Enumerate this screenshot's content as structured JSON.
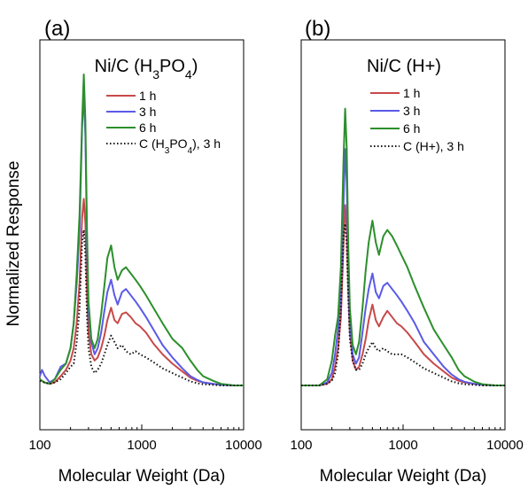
{
  "ylabel": "Normalized Response",
  "chart_data": [
    {
      "type": "line",
      "panel_label": "(a)",
      "title_parts": [
        "Ni/C (H",
        "3",
        "PO",
        "4",
        ")"
      ],
      "xlabel": "Molecular Weight (Da)",
      "ylabel": "Normalized Response",
      "xscale": "log",
      "xlim": [
        100,
        10000
      ],
      "x_ticks": [
        100,
        1000,
        10000
      ],
      "x_tick_labels": [
        "100",
        "1000",
        "10000"
      ],
      "ylim": [
        0,
        1
      ],
      "legend_position": "top-right",
      "series": [
        {
          "name_parts": [
            "1 h"
          ],
          "color": "#c8494a",
          "dash": "solid",
          "x": [
            100,
            110,
            125,
            140,
            160,
            180,
            200,
            215,
            230,
            245,
            260,
            270,
            280,
            290,
            300,
            320,
            345,
            370,
            400,
            430,
            460,
            500,
            540,
            580,
            640,
            700,
            780,
            870,
            960,
            1100,
            1300,
            1600,
            2000,
            2500,
            3000,
            3500,
            4000,
            5000,
            6000,
            8000,
            10000
          ],
          "y": [
            0.02,
            0.01,
            0.005,
            0.01,
            0.03,
            0.05,
            0.08,
            0.12,
            0.2,
            0.33,
            0.54,
            0.6,
            0.52,
            0.3,
            0.17,
            0.1,
            0.08,
            0.09,
            0.12,
            0.16,
            0.21,
            0.25,
            0.21,
            0.2,
            0.23,
            0.235,
            0.22,
            0.2,
            0.19,
            0.17,
            0.135,
            0.1,
            0.07,
            0.045,
            0.025,
            0.015,
            0.01,
            0.005,
            0.002,
            0,
            0
          ]
        },
        {
          "name_parts": [
            "3 h"
          ],
          "color": "#5a5ae8",
          "dash": "solid",
          "x": [
            100,
            105,
            112,
            125,
            140,
            160,
            180,
            200,
            215,
            230,
            245,
            260,
            270,
            280,
            290,
            300,
            320,
            345,
            370,
            400,
            430,
            460,
            500,
            540,
            580,
            640,
            700,
            780,
            870,
            960,
            1100,
            1300,
            1600,
            2000,
            2500,
            3000,
            3500,
            4000,
            5000,
            6000,
            8000,
            10000
          ],
          "y": [
            0.03,
            0.05,
            0.03,
            0.01,
            0.02,
            0.06,
            0.07,
            0.12,
            0.2,
            0.33,
            0.5,
            0.83,
            0.94,
            0.8,
            0.45,
            0.24,
            0.14,
            0.1,
            0.12,
            0.17,
            0.24,
            0.3,
            0.34,
            0.29,
            0.26,
            0.3,
            0.31,
            0.29,
            0.27,
            0.25,
            0.22,
            0.18,
            0.13,
            0.09,
            0.055,
            0.03,
            0.018,
            0.01,
            0.005,
            0.002,
            0,
            0
          ]
        },
        {
          "name_parts": [
            "6 h"
          ],
          "color": "#2c8f2c",
          "dash": "solid",
          "x": [
            100,
            110,
            125,
            140,
            160,
            180,
            200,
            215,
            230,
            245,
            260,
            270,
            280,
            290,
            300,
            320,
            345,
            370,
            400,
            430,
            460,
            500,
            540,
            580,
            640,
            700,
            780,
            870,
            960,
            1100,
            1300,
            1600,
            2000,
            2500,
            3000,
            3500,
            4000,
            5000,
            6000,
            8000,
            10000
          ],
          "y": [
            0.02,
            0.01,
            0.005,
            0.02,
            0.05,
            0.07,
            0.12,
            0.2,
            0.36,
            0.55,
            0.85,
            1.0,
            0.85,
            0.5,
            0.27,
            0.15,
            0.12,
            0.15,
            0.23,
            0.32,
            0.41,
            0.45,
            0.38,
            0.34,
            0.37,
            0.38,
            0.36,
            0.34,
            0.32,
            0.29,
            0.25,
            0.2,
            0.15,
            0.12,
            0.08,
            0.05,
            0.03,
            0.015,
            0.005,
            0,
            0
          ]
        },
        {
          "name_parts": [
            "C (H",
            "3",
            "PO",
            "4",
            "), 3 h"
          ],
          "color": "#111111",
          "dash": "dotted",
          "x": [
            100,
            110,
            125,
            140,
            160,
            180,
            200,
            215,
            230,
            245,
            260,
            270,
            280,
            290,
            300,
            320,
            345,
            370,
            400,
            430,
            460,
            500,
            540,
            580,
            640,
            700,
            780,
            870,
            960,
            1100,
            1300,
            1600,
            2000,
            2500,
            3000,
            3500,
            4000,
            5000,
            6000,
            8000,
            10000
          ],
          "y": [
            0.015,
            0.01,
            0.005,
            0.01,
            0.02,
            0.04,
            0.06,
            0.07,
            0.14,
            0.25,
            0.46,
            0.5,
            0.42,
            0.22,
            0.12,
            0.06,
            0.04,
            0.05,
            0.07,
            0.1,
            0.13,
            0.16,
            0.14,
            0.12,
            0.13,
            0.11,
            0.1,
            0.11,
            0.1,
            0.09,
            0.075,
            0.055,
            0.04,
            0.025,
            0.013,
            0.007,
            0.004,
            0.002,
            0,
            0,
            0
          ]
        }
      ]
    },
    {
      "type": "line",
      "panel_label": "(b)",
      "title_parts": [
        "Ni/C (H+)"
      ],
      "xlabel": "Molecular Weight (Da)",
      "ylabel": "Normalized Response",
      "xscale": "log",
      "xlim": [
        100,
        10000
      ],
      "x_ticks": [
        100,
        1000,
        10000
      ],
      "x_tick_labels": [
        "100",
        "1000",
        "10000"
      ],
      "ylim": [
        0,
        1
      ],
      "legend_position": "top-right",
      "series": [
        {
          "name_parts": [
            "1 h"
          ],
          "color": "#c8494a",
          "dash": "solid",
          "x": [
            100,
            150,
            180,
            200,
            215,
            230,
            245,
            260,
            270,
            280,
            290,
            300,
            320,
            345,
            370,
            400,
            430,
            460,
            500,
            540,
            580,
            640,
            700,
            780,
            870,
            960,
            1100,
            1300,
            1600,
            2000,
            2500,
            3000,
            3500,
            4000,
            5000,
            6000,
            8000,
            10000
          ],
          "y": [
            0,
            0,
            0.005,
            0.02,
            0.06,
            0.12,
            0.22,
            0.45,
            0.58,
            0.5,
            0.3,
            0.17,
            0.08,
            0.05,
            0.06,
            0.1,
            0.15,
            0.21,
            0.26,
            0.21,
            0.19,
            0.22,
            0.24,
            0.22,
            0.2,
            0.19,
            0.17,
            0.14,
            0.1,
            0.07,
            0.045,
            0.025,
            0.015,
            0.01,
            0.005,
            0.002,
            0,
            0
          ]
        },
        {
          "name_parts": [
            "3 h"
          ],
          "color": "#5a5ae8",
          "dash": "solid",
          "x": [
            100,
            150,
            180,
            200,
            215,
            230,
            245,
            260,
            270,
            280,
            290,
            300,
            320,
            345,
            370,
            400,
            430,
            460,
            500,
            540,
            580,
            640,
            700,
            780,
            870,
            960,
            1100,
            1300,
            1600,
            2000,
            2500,
            3000,
            3500,
            4000,
            5000,
            6000,
            8000,
            10000
          ],
          "y": [
            0,
            0,
            0.01,
            0.04,
            0.1,
            0.18,
            0.3,
            0.58,
            0.76,
            0.65,
            0.37,
            0.2,
            0.1,
            0.07,
            0.09,
            0.17,
            0.25,
            0.31,
            0.36,
            0.3,
            0.28,
            0.32,
            0.33,
            0.31,
            0.29,
            0.27,
            0.24,
            0.2,
            0.14,
            0.1,
            0.06,
            0.035,
            0.02,
            0.012,
            0.005,
            0.002,
            0,
            0
          ]
        },
        {
          "name_parts": [
            "6 h"
          ],
          "color": "#2c8f2c",
          "dash": "solid",
          "x": [
            100,
            150,
            180,
            200,
            215,
            230,
            245,
            260,
            270,
            280,
            290,
            300,
            320,
            345,
            370,
            400,
            430,
            460,
            500,
            540,
            580,
            640,
            700,
            780,
            870,
            960,
            1100,
            1300,
            1600,
            2000,
            2500,
            3000,
            3500,
            4000,
            5000,
            6000,
            8000,
            10000
          ],
          "y": [
            0,
            0,
            0.02,
            0.08,
            0.16,
            0.22,
            0.38,
            0.72,
            0.89,
            0.76,
            0.44,
            0.25,
            0.13,
            0.1,
            0.14,
            0.25,
            0.37,
            0.46,
            0.53,
            0.46,
            0.42,
            0.48,
            0.5,
            0.48,
            0.45,
            0.42,
            0.38,
            0.32,
            0.25,
            0.18,
            0.13,
            0.09,
            0.05,
            0.03,
            0.012,
            0.004,
            0,
            0
          ]
        },
        {
          "name_parts": [
            "C (H+), 3 h"
          ],
          "color": "#111111",
          "dash": "dotted",
          "x": [
            100,
            150,
            180,
            200,
            215,
            230,
            245,
            260,
            270,
            280,
            290,
            300,
            320,
            345,
            370,
            400,
            430,
            460,
            500,
            540,
            580,
            640,
            700,
            780,
            870,
            960,
            1100,
            1300,
            1600,
            2000,
            2500,
            3000,
            3500,
            4000,
            5000,
            6000,
            8000,
            10000
          ],
          "y": [
            0,
            0,
            0.005,
            0.015,
            0.04,
            0.1,
            0.25,
            0.48,
            0.52,
            0.45,
            0.28,
            0.15,
            0.08,
            0.05,
            0.05,
            0.07,
            0.1,
            0.12,
            0.14,
            0.12,
            0.11,
            0.12,
            0.11,
            0.1,
            0.1,
            0.1,
            0.09,
            0.075,
            0.055,
            0.04,
            0.025,
            0.013,
            0.007,
            0.004,
            0.002,
            0,
            0,
            0
          ]
        }
      ]
    }
  ]
}
